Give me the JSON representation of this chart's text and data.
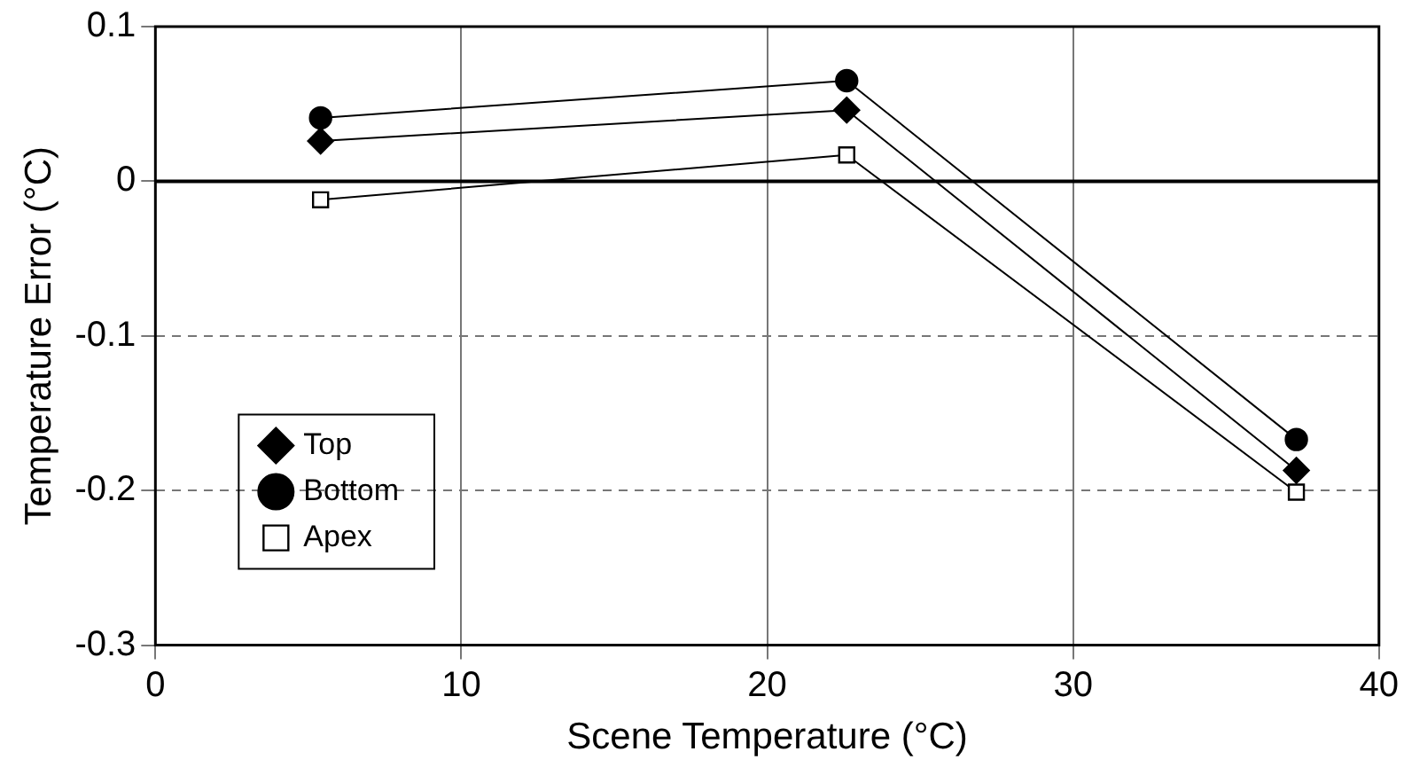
{
  "chart_data": {
    "type": "line",
    "xlabel": "Scene Temperature (°C)",
    "ylabel": "Temperature Error (°C)",
    "xlim": [
      0,
      40
    ],
    "xticks": [
      0,
      10,
      20,
      30,
      40
    ],
    "ylim": [
      -0.3,
      0.1
    ],
    "yticks": [
      -0.3,
      -0.2,
      -0.1,
      0,
      0.1
    ],
    "grid": true,
    "legend": "bottom left",
    "line_style": "solid",
    "ref_lines": [
      {
        "axis": "y",
        "value": 0,
        "color": "#000000"
      }
    ],
    "series": [
      {
        "name": "Top",
        "color": "#000000",
        "marker": "diamond",
        "x": [
          5.4,
          22.6,
          37.3
        ],
        "values": [
          0.026,
          0.046,
          -0.187
        ]
      },
      {
        "name": "Bottom",
        "color": "#000000",
        "marker": "circle",
        "x": [
          5.4,
          22.6,
          37.3
        ],
        "values": [
          0.041,
          0.065,
          -0.167
        ]
      },
      {
        "name": "Apex",
        "color": "#000000",
        "marker": "square",
        "x": [
          5.4,
          22.6,
          37.3
        ],
        "values": [
          -0.012,
          0.017,
          -0.201
        ]
      }
    ]
  }
}
